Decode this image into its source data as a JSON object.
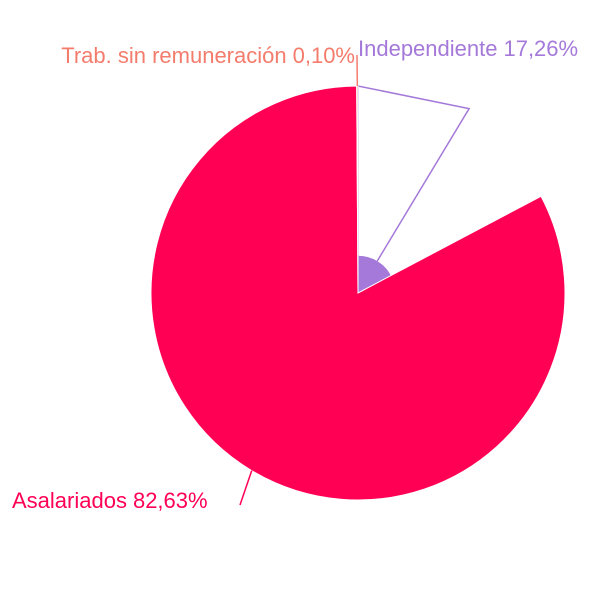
{
  "chart_data": {
    "type": "pie",
    "categories": [
      "Independiente",
      "Asalariados",
      "Trab. sin remuneración"
    ],
    "values": [
      17.26,
      82.63,
      0.1
    ],
    "value_labels": [
      "17,26%",
      "82,63%",
      "0,10%"
    ],
    "colors": [
      "#a479d9",
      "#ff0055",
      "#f47c6c"
    ]
  }
}
